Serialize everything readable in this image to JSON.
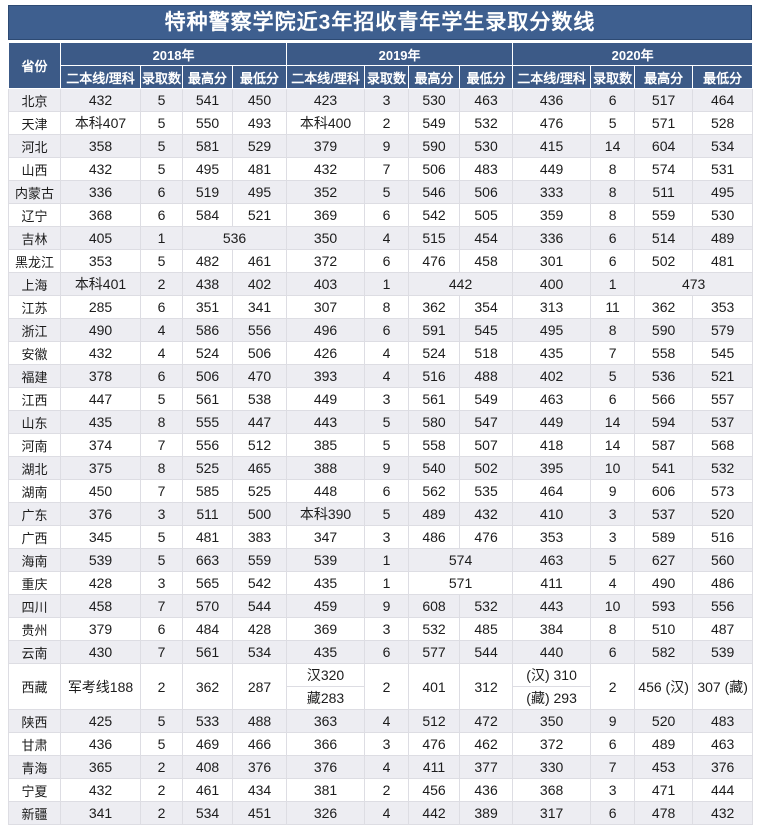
{
  "title": "特种警察学院近3年招收青年学生录取分数线",
  "colors": {
    "header_bg": "#3c5a87",
    "title_bg": "#3e5f8f",
    "stripe_bg": "#ededf2",
    "header_text": "#ffffff",
    "body_text": "#1c1c1c"
  },
  "columns": {
    "province": "省份",
    "years": [
      "2018年",
      "2019年",
      "2020年"
    ],
    "sub": [
      "二本线/理科",
      "录取数",
      "最高分",
      "最低分"
    ]
  },
  "rows": [
    {
      "cells": [
        "北京",
        "432",
        "5",
        "541",
        "450",
        "423",
        "3",
        "530",
        "463",
        "436",
        "6",
        "517",
        "464"
      ]
    },
    {
      "cells": [
        "天津",
        "本科407",
        "5",
        "550",
        "493",
        "本科400",
        "2",
        "549",
        "532",
        "476",
        "5",
        "571",
        "528"
      ]
    },
    {
      "cells": [
        "河北",
        "358",
        "5",
        "581",
        "529",
        "379",
        "9",
        "590",
        "530",
        "415",
        "14",
        "604",
        "534"
      ]
    },
    {
      "cells": [
        "山西",
        "432",
        "5",
        "495",
        "481",
        "432",
        "7",
        "506",
        "483",
        "449",
        "8",
        "574",
        "531"
      ]
    },
    {
      "cells": [
        "内蒙古",
        "336",
        "6",
        "519",
        "495",
        "352",
        "5",
        "546",
        "506",
        "333",
        "8",
        "511",
        "495"
      ]
    },
    {
      "cells": [
        "辽宁",
        "368",
        "6",
        "584",
        "521",
        "369",
        "6",
        "542",
        "505",
        "359",
        "8",
        "559",
        "530"
      ]
    },
    {
      "cells": [
        "吉林",
        "405",
        "1",
        {
          "t": "536",
          "cs": 2
        },
        "350",
        "4",
        "515",
        "454",
        "336",
        "6",
        "514",
        "489"
      ]
    },
    {
      "cells": [
        "黑龙江",
        "353",
        "5",
        "482",
        "461",
        "372",
        "6",
        "476",
        "458",
        "301",
        "6",
        "502",
        "481"
      ]
    },
    {
      "cells": [
        "上海",
        "本科401",
        "2",
        "438",
        "402",
        "403",
        "1",
        {
          "t": "442",
          "cs": 2
        },
        "400",
        "1",
        {
          "t": "473",
          "cs": 2
        }
      ]
    },
    {
      "cells": [
        "江苏",
        "285",
        "6",
        "351",
        "341",
        "307",
        "8",
        "362",
        "354",
        "313",
        "11",
        "362",
        "353"
      ]
    },
    {
      "cells": [
        "浙江",
        "490",
        "4",
        "586",
        "556",
        "496",
        "6",
        "591",
        "545",
        "495",
        "8",
        "590",
        "579"
      ]
    },
    {
      "cells": [
        "安徽",
        "432",
        "4",
        "524",
        "506",
        "426",
        "4",
        "524",
        "518",
        "435",
        "7",
        "558",
        "545"
      ]
    },
    {
      "cells": [
        "福建",
        "378",
        "6",
        "506",
        "470",
        "393",
        "4",
        "516",
        "488",
        "402",
        "5",
        "536",
        "521"
      ]
    },
    {
      "cells": [
        "江西",
        "447",
        "5",
        "561",
        "538",
        "449",
        "3",
        "561",
        "549",
        "463",
        "6",
        "566",
        "557"
      ]
    },
    {
      "cells": [
        "山东",
        "435",
        "8",
        "555",
        "447",
        "443",
        "5",
        "580",
        "547",
        "449",
        "14",
        "594",
        "537"
      ]
    },
    {
      "cells": [
        "河南",
        "374",
        "7",
        "556",
        "512",
        "385",
        "5",
        "558",
        "507",
        "418",
        "14",
        "587",
        "568"
      ]
    },
    {
      "cells": [
        "湖北",
        "375",
        "8",
        "525",
        "465",
        "388",
        "9",
        "540",
        "502",
        "395",
        "10",
        "541",
        "532"
      ]
    },
    {
      "cells": [
        "湖南",
        "450",
        "7",
        "585",
        "525",
        "448",
        "6",
        "562",
        "535",
        "464",
        "9",
        "606",
        "573"
      ]
    },
    {
      "cells": [
        "广东",
        "376",
        "3",
        "511",
        "500",
        "本科390",
        "5",
        "489",
        "432",
        "410",
        "3",
        "537",
        "520"
      ]
    },
    {
      "cells": [
        "广西",
        "345",
        "5",
        "481",
        "383",
        "347",
        "3",
        "486",
        "476",
        "353",
        "3",
        "589",
        "516"
      ]
    },
    {
      "cells": [
        "海南",
        "539",
        "5",
        "663",
        "559",
        "539",
        "1",
        {
          "t": "574",
          "cs": 2
        },
        "463",
        "5",
        "627",
        "560"
      ]
    },
    {
      "cells": [
        "重庆",
        "428",
        "3",
        "565",
        "542",
        "435",
        "1",
        {
          "t": "571",
          "cs": 2
        },
        "411",
        "4",
        "490",
        "486"
      ]
    },
    {
      "cells": [
        "四川",
        "458",
        "7",
        "570",
        "544",
        "459",
        "9",
        "608",
        "532",
        "443",
        "10",
        "593",
        "556"
      ]
    },
    {
      "cells": [
        "贵州",
        "379",
        "6",
        "484",
        "428",
        "369",
        "3",
        "532",
        "485",
        "384",
        "8",
        "510",
        "487"
      ]
    },
    {
      "cells": [
        "云南",
        "430",
        "7",
        "561",
        "534",
        "435",
        "6",
        "577",
        "544",
        "440",
        "6",
        "582",
        "539"
      ]
    },
    {
      "cells": [
        {
          "t": "西藏",
          "rs": 2
        },
        {
          "t": "军考线188",
          "rs": 2
        },
        {
          "t": "2",
          "rs": 2
        },
        {
          "t": "362",
          "rs": 2
        },
        {
          "t": "287",
          "rs": 2
        },
        {
          "t": "汉320"
        },
        {
          "t": "2",
          "rs": 2
        },
        {
          "t": "401",
          "rs": 2
        },
        {
          "t": "312",
          "rs": 2
        },
        {
          "t": "(汉) 310"
        },
        {
          "t": "2",
          "rs": 2
        },
        {
          "t": "456 (汉)",
          "rs": 2
        },
        {
          "t": "307 (藏)",
          "rs": 2
        }
      ],
      "cells2": [
        {
          "t": "藏283"
        },
        {
          "t": "(藏) 293"
        }
      ]
    },
    {
      "cells": [
        "陕西",
        "425",
        "5",
        "533",
        "488",
        "363",
        "4",
        "512",
        "472",
        "350",
        "9",
        "520",
        "483"
      ]
    },
    {
      "cells": [
        "甘肃",
        "436",
        "5",
        "469",
        "466",
        "366",
        "3",
        "476",
        "462",
        "372",
        "6",
        "489",
        "463"
      ]
    },
    {
      "cells": [
        "青海",
        "365",
        "2",
        "408",
        "376",
        "376",
        "4",
        "411",
        "377",
        "330",
        "7",
        "453",
        "376"
      ]
    },
    {
      "cells": [
        "宁夏",
        "432",
        "2",
        "461",
        "434",
        "381",
        "2",
        "456",
        "436",
        "368",
        "3",
        "471",
        "444"
      ]
    },
    {
      "cells": [
        "新疆",
        "341",
        "2",
        "534",
        "451",
        "326",
        "4",
        "442",
        "389",
        "317",
        "6",
        "478",
        "432"
      ]
    }
  ]
}
